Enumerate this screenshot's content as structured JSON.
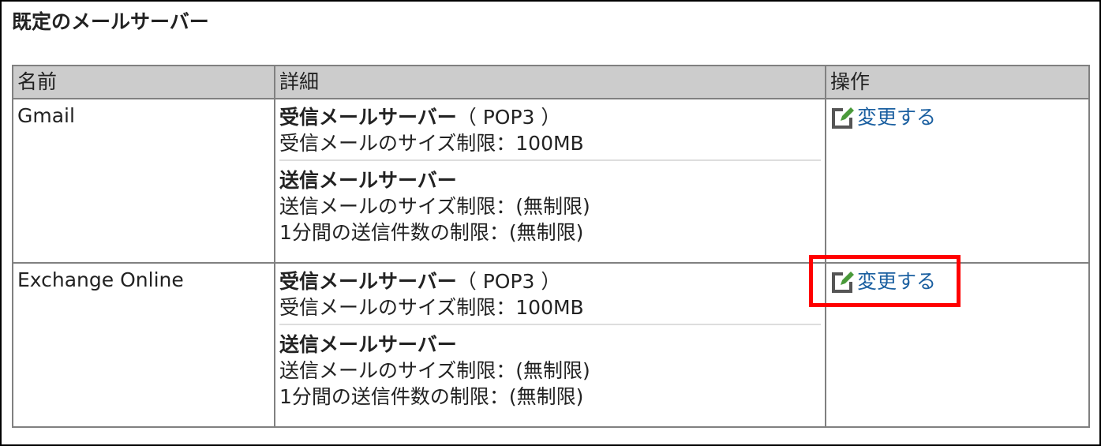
{
  "title": "既定のメールサーバー",
  "columns": {
    "name": "名前",
    "detail": "詳細",
    "action": "操作"
  },
  "rows": [
    {
      "name": "Gmail",
      "incoming_label": "受信メールサーバー",
      "incoming_protocol": "（ POP3 ）",
      "incoming_size": "受信メールのサイズ制限：100MB",
      "outgoing_label": "送信メールサーバー",
      "outgoing_size": "送信メールのサイズ制限：(無制限)",
      "outgoing_rate": "1分間の送信件数の制限：(無制限)",
      "action_label": "変更する"
    },
    {
      "name": "Exchange Online",
      "incoming_label": "受信メールサーバー",
      "incoming_protocol": "（ POP3 ）",
      "incoming_size": "受信メールのサイズ制限：100MB",
      "outgoing_label": "送信メールサーバー",
      "outgoing_size": "送信メールのサイズ制限：(無制限)",
      "outgoing_rate": "1分間の送信件数の制限：(無制限)",
      "action_label": "変更する"
    }
  ],
  "colors": {
    "header_bg": "#cccccc",
    "link": "#1a5fa0",
    "highlight": "#ff0000",
    "pencil": "#4a9a3a"
  }
}
